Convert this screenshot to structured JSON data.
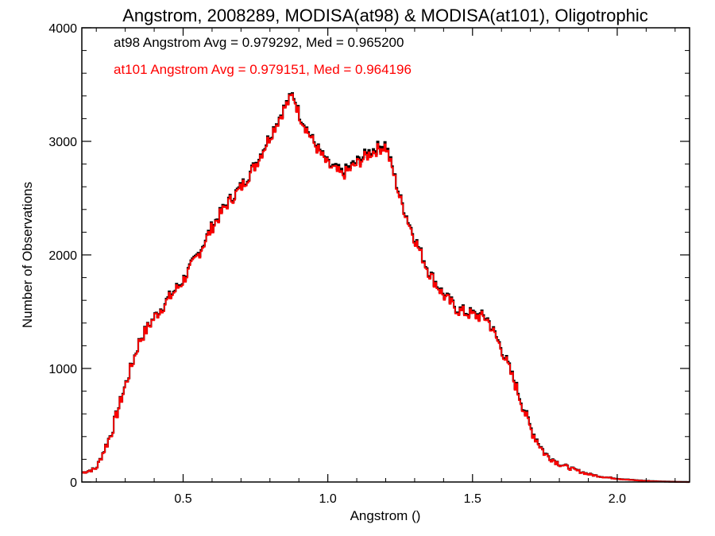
{
  "chart_data": {
    "type": "histogram",
    "title": "Angstrom, 2008289, MODISA(at98) & MODISA(at101), Oligotrophic",
    "xlabel": "Angstrom ()",
    "ylabel": "Number of Observations",
    "xlim": [
      0.15,
      2.25
    ],
    "ylim": [
      0,
      4000
    ],
    "x_ticks": [
      0.5,
      1.0,
      1.5,
      2.0
    ],
    "x_tick_labels": [
      "0.5",
      "1.0",
      "1.5",
      "2.0"
    ],
    "y_ticks": [
      0,
      1000,
      2000,
      3000,
      4000
    ],
    "y_tick_labels": [
      "0",
      "1000",
      "2000",
      "3000",
      "4000"
    ],
    "grid": false,
    "annotations": [
      {
        "text": "at98 Angstrom Avg = 0.979292, Med = 0.965200",
        "color": "#000000"
      },
      {
        "text": "at101 Angstrom Avg = 0.979151, Med = 0.964196",
        "color": "#ff0000"
      }
    ],
    "profile_x": [
      0.15,
      0.2,
      0.25,
      0.3,
      0.35,
      0.4,
      0.45,
      0.5,
      0.55,
      0.6,
      0.65,
      0.7,
      0.75,
      0.8,
      0.85,
      0.88,
      0.9,
      0.95,
      1.0,
      1.05,
      1.1,
      1.15,
      1.2,
      1.23,
      1.25,
      1.3,
      1.35,
      1.4,
      1.45,
      1.5,
      1.55,
      1.6,
      1.65,
      1.7,
      1.75,
      1.8,
      1.85,
      1.9,
      1.95,
      2.0,
      2.05,
      2.1,
      2.15,
      2.2,
      2.25
    ],
    "series": [
      {
        "name": "at98",
        "color": "#000000",
        "bin_width": 0.005,
        "profile_y": [
          80,
          120,
          420,
          850,
          1250,
          1450,
          1620,
          1780,
          2000,
          2250,
          2450,
          2600,
          2800,
          3050,
          3300,
          3420,
          3250,
          3000,
          2800,
          2720,
          2820,
          2920,
          2980,
          2700,
          2500,
          2150,
          1850,
          1650,
          1520,
          1480,
          1450,
          1180,
          850,
          480,
          250,
          160,
          110,
          70,
          45,
          30,
          18,
          10,
          5,
          2,
          0
        ],
        "jitter": 55,
        "seed": 7
      },
      {
        "name": "at101",
        "color": "#ff0000",
        "bin_width": 0.005,
        "profile_y": [
          80,
          118,
          415,
          845,
          1245,
          1445,
          1610,
          1770,
          1990,
          2240,
          2440,
          2590,
          2790,
          3040,
          3290,
          3410,
          3240,
          2990,
          2790,
          2700,
          2800,
          2900,
          2960,
          2690,
          2490,
          2140,
          1840,
          1640,
          1510,
          1470,
          1440,
          1170,
          840,
          470,
          245,
          158,
          108,
          68,
          44,
          29,
          17,
          9,
          4,
          2,
          0
        ],
        "jitter": 55,
        "seed": 7
      }
    ]
  }
}
